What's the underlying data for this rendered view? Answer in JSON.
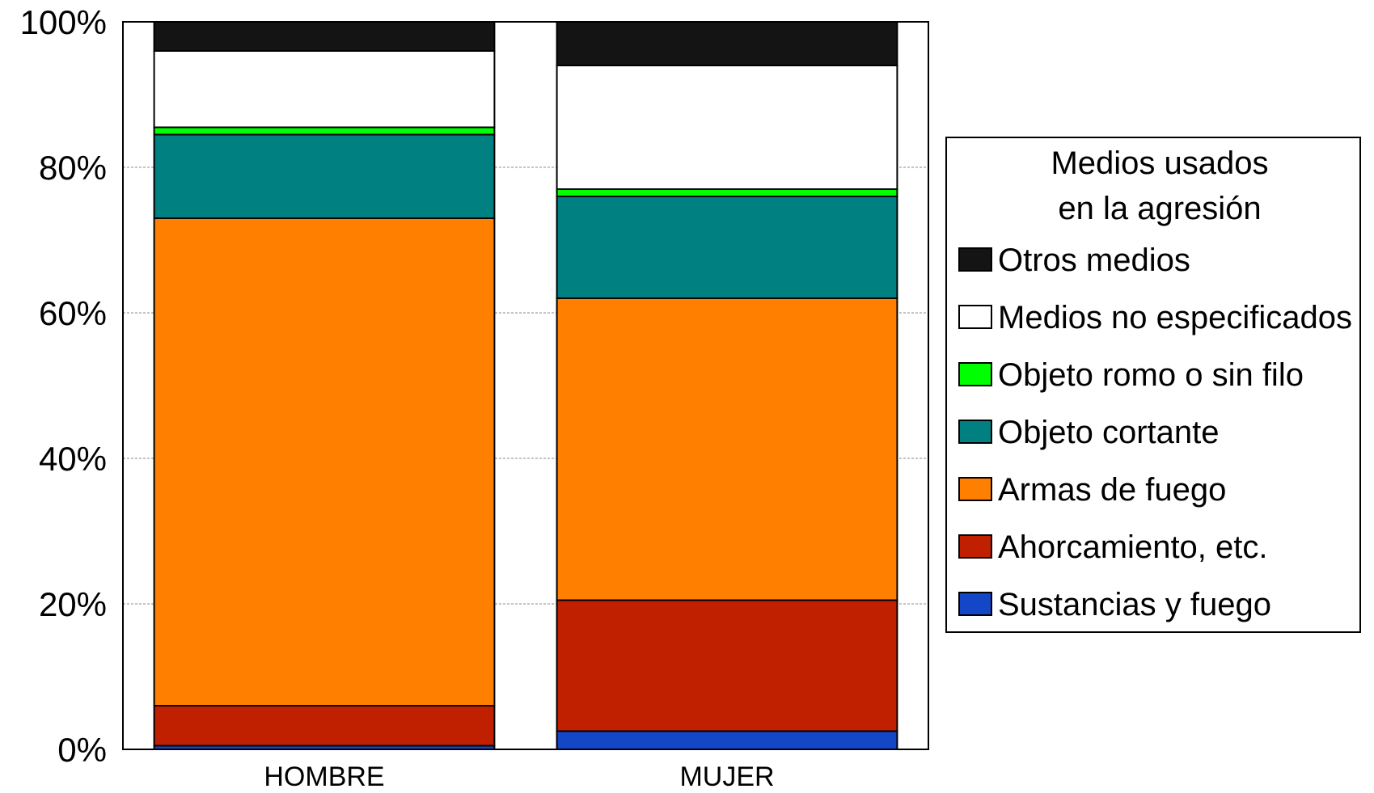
{
  "chart_data": {
    "type": "bar",
    "stacked": true,
    "percent": true,
    "categories": [
      "HOMBRE",
      "MUJER"
    ],
    "series": [
      {
        "name": "Sustancias y fuego",
        "color": "#1446C8",
        "values": [
          0.5,
          2.5
        ]
      },
      {
        "name": "Ahorcamiento, etc.",
        "color": "#C02000",
        "values": [
          5.5,
          18.0
        ]
      },
      {
        "name": "Armas de fuego",
        "color": "#FF8000",
        "values": [
          67.0,
          41.5
        ]
      },
      {
        "name": "Objeto cortante",
        "color": "#008080",
        "values": [
          11.5,
          14.0
        ]
      },
      {
        "name": "Objeto romo o sin filo",
        "color": "#00FF00",
        "values": [
          1.0,
          1.0
        ]
      },
      {
        "name": "Medios no especificados",
        "color": "#FFFFFF",
        "values": [
          10.5,
          17.0
        ]
      },
      {
        "name": "Otros medios",
        "color": "#141414",
        "values": [
          4.0,
          6.0
        ]
      }
    ],
    "ylim": [
      0,
      100
    ],
    "yticks": [
      "0%",
      "20%",
      "40%",
      "60%",
      "80%",
      "100%"
    ],
    "grid": true,
    "legend": {
      "title_lines": [
        "Medios usados",
        "en la agresión"
      ],
      "placement": "right",
      "order": [
        "Otros medios",
        "Medios no especificados",
        "Objeto romo o sin filo",
        "Objeto cortante",
        "Armas de fuego",
        "Ahorcamiento, etc.",
        "Sustancias y fuego"
      ]
    }
  }
}
